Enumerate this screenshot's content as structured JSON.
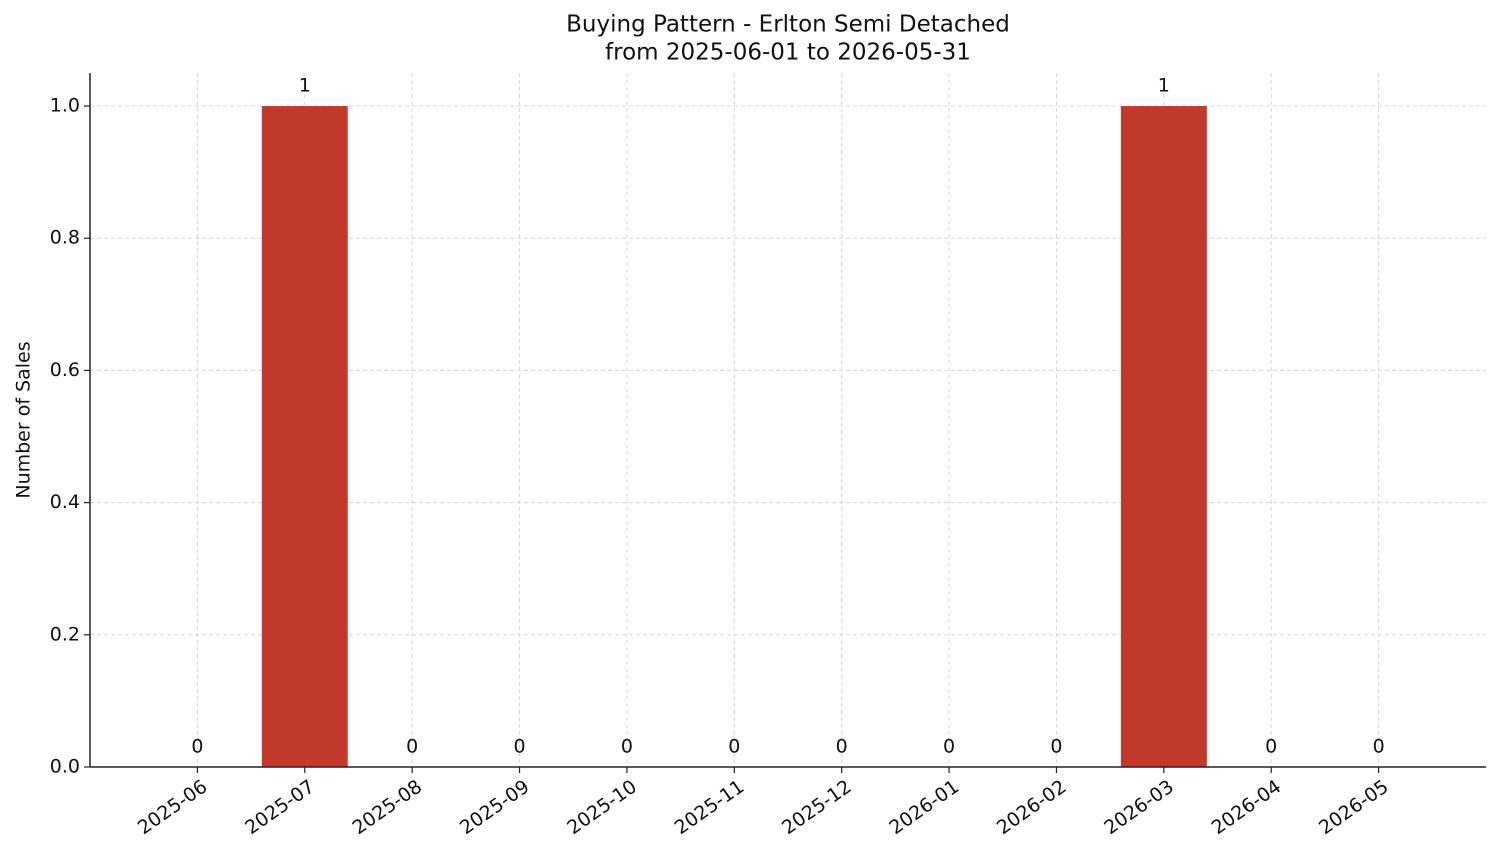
{
  "chart_data": {
    "type": "bar",
    "title": "Buying Pattern - Erlton Semi Detached",
    "subtitle": "from 2025-06-01 to 2026-05-31",
    "y_label": "Number of Sales",
    "categories": [
      "2025-06",
      "2025-07",
      "2025-08",
      "2025-09",
      "2025-10",
      "2025-11",
      "2025-12",
      "2026-01",
      "2026-02",
      "2026-03",
      "2026-04",
      "2026-05"
    ],
    "values": [
      0,
      1,
      0,
      0,
      0,
      0,
      0,
      0,
      0,
      1,
      0,
      0
    ],
    "color": "#c0392b",
    "ylim": [
      0,
      1.05
    ],
    "yticks": [
      {
        "value": 0,
        "label": "0.0"
      },
      0.2,
      0.4,
      0.6,
      0.8,
      {
        "value": 1,
        "label": "1.0"
      }
    ],
    "grid": true
  }
}
